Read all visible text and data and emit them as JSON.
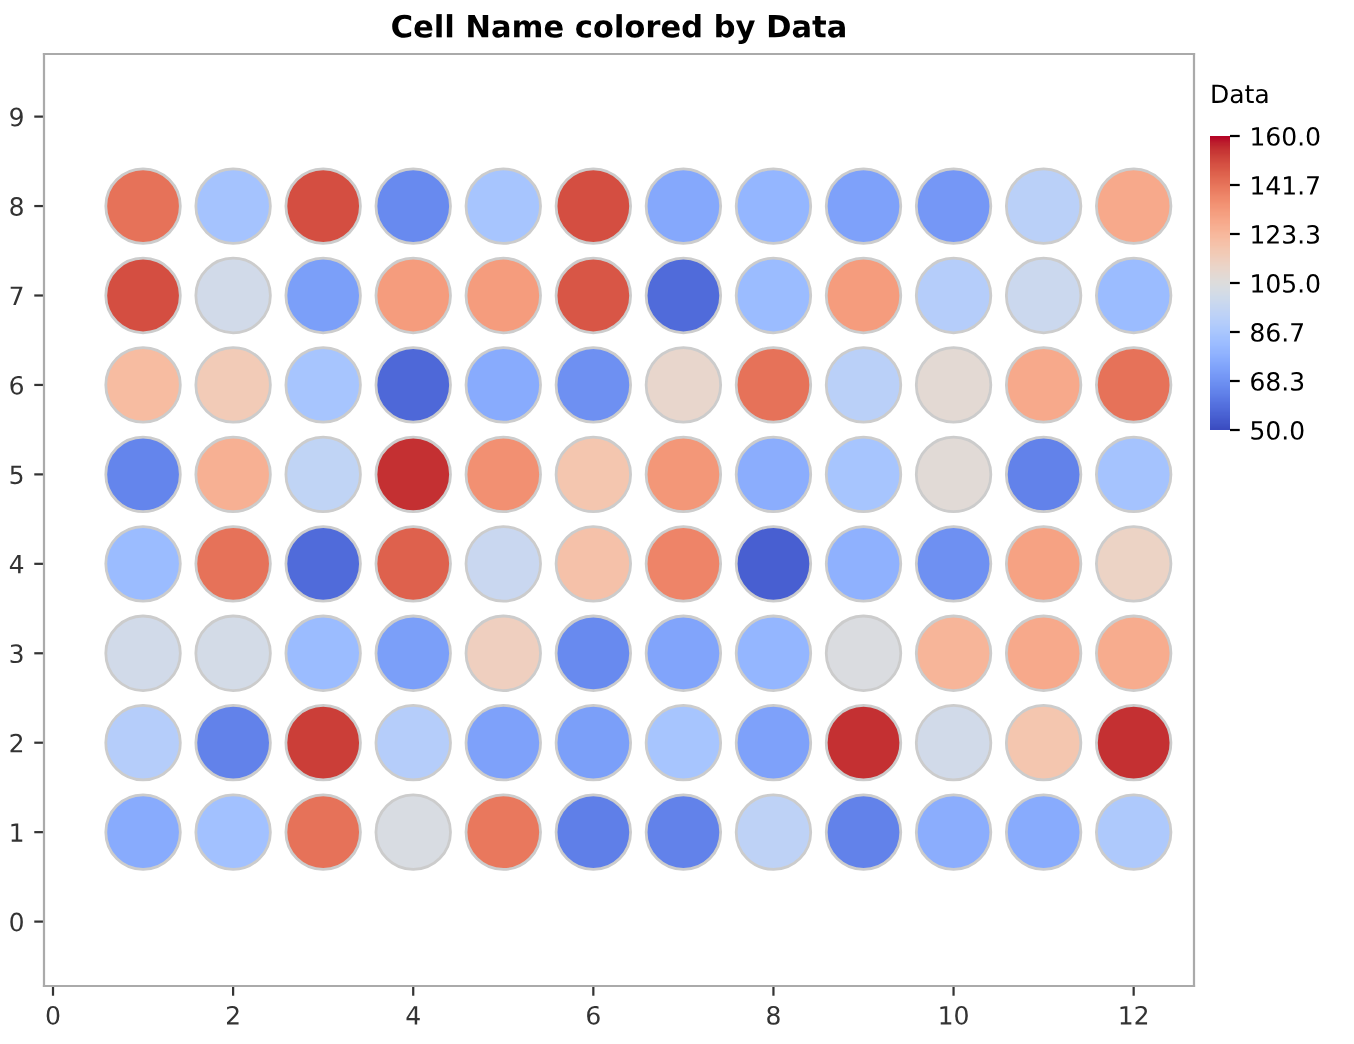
{
  "chart_data": {
    "type": "scatter",
    "title": "Cell Name colored by Data",
    "clabel": "Data",
    "x": [
      1,
      2,
      3,
      4,
      5,
      6,
      7,
      8,
      9,
      10,
      11,
      12,
      1,
      2,
      3,
      4,
      5,
      6,
      7,
      8,
      9,
      10,
      11,
      12,
      1,
      2,
      3,
      4,
      5,
      6,
      7,
      8,
      9,
      10,
      11,
      12,
      1,
      2,
      3,
      4,
      5,
      6,
      7,
      8,
      9,
      10,
      11,
      12,
      1,
      2,
      3,
      4,
      5,
      6,
      7,
      8,
      9,
      10,
      11,
      12,
      1,
      2,
      3,
      4,
      5,
      6,
      7,
      8,
      9,
      10,
      11,
      12,
      1,
      2,
      3,
      4,
      5,
      6,
      7,
      8,
      9,
      10,
      11,
      12,
      1,
      2,
      3,
      4,
      5,
      6,
      7,
      8,
      9,
      10,
      11,
      12
    ],
    "values": [
      8,
      8,
      8,
      8,
      8,
      8,
      8,
      8,
      8,
      8,
      8,
      8,
      7,
      7,
      7,
      7,
      7,
      7,
      7,
      7,
      7,
      7,
      7,
      7,
      6,
      6,
      6,
      6,
      6,
      6,
      6,
      6,
      6,
      6,
      6,
      6,
      5,
      5,
      5,
      5,
      5,
      5,
      5,
      5,
      5,
      5,
      5,
      5,
      4,
      4,
      4,
      4,
      4,
      4,
      4,
      4,
      4,
      4,
      4,
      4,
      3,
      3,
      3,
      3,
      3,
      3,
      3,
      3,
      3,
      3,
      3,
      3,
      2,
      2,
      2,
      2,
      2,
      2,
      2,
      2,
      2,
      2,
      2,
      2,
      1,
      1,
      1,
      1,
      1,
      1,
      1,
      1,
      1,
      1,
      1,
      1
    ],
    "cvalues": [
      142,
      85,
      150,
      66,
      86,
      150,
      75,
      80,
      73,
      70,
      92,
      128,
      150,
      100,
      72,
      132,
      132,
      148,
      58,
      82,
      132,
      90,
      98,
      82,
      122,
      116,
      86,
      57,
      76,
      68,
      110,
      142,
      92,
      108,
      128,
      142,
      65,
      126,
      94,
      155,
      135,
      118,
      133,
      77,
      86,
      107,
      64,
      85,
      82,
      142,
      58,
      146,
      97,
      120,
      138,
      55,
      78,
      68,
      130,
      112,
      100,
      101,
      82,
      72,
      114,
      66,
      74,
      80,
      104,
      124,
      128,
      127,
      90,
      64,
      153,
      90,
      73,
      72,
      86,
      73,
      155,
      100,
      118,
      155,
      76,
      84,
      142,
      103,
      141,
      63,
      64,
      93,
      64,
      77,
      76,
      88
    ],
    "clim": [
      50,
      160
    ],
    "cticks": [
      {
        "value": 50,
        "label": "50.0"
      },
      {
        "value": 68.333,
        "label": "68.3"
      },
      {
        "value": 86.667,
        "label": "86.7"
      },
      {
        "value": 105,
        "label": "105.0"
      },
      {
        "value": 123.333,
        "label": "123.3"
      },
      {
        "value": 141.667,
        "label": "141.7"
      },
      {
        "value": 160,
        "label": "160.0"
      }
    ],
    "xlim": [
      -0.1,
      12.67
    ],
    "ylim": [
      -0.72,
      9.7
    ],
    "xticks": [
      0,
      2,
      4,
      6,
      8,
      10,
      12
    ],
    "yticks": [
      0,
      1,
      2,
      3,
      4,
      5,
      6,
      7,
      8,
      9
    ],
    "marker": "circle",
    "grid": false,
    "legend": false
  }
}
